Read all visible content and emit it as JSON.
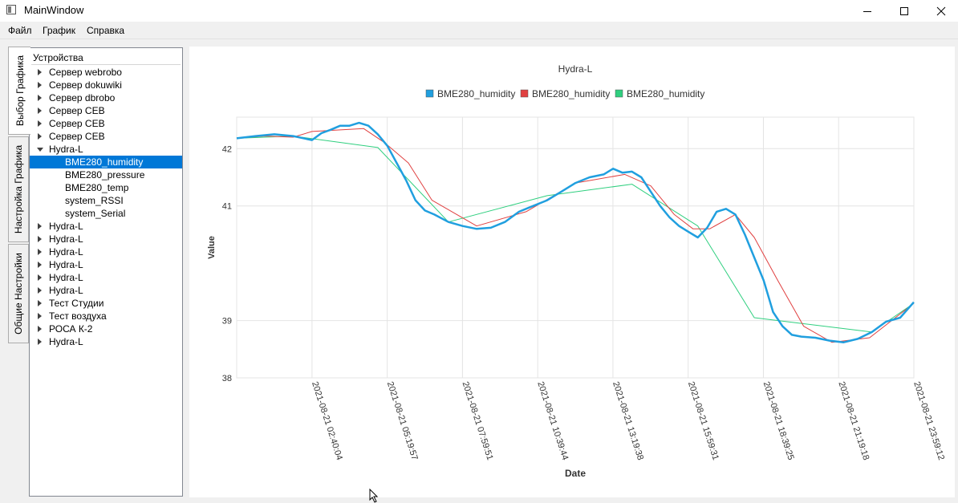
{
  "window": {
    "title": "MainWindow"
  },
  "menu": [
    "Файл",
    "График",
    "Справка"
  ],
  "tabs": [
    "Выбор Графика",
    "Настройка Графика",
    "Общие Настройки"
  ],
  "tree": {
    "header": "Устройства",
    "items": [
      {
        "label": "Сервер webrobo",
        "level": 0,
        "state": "collapsed"
      },
      {
        "label": "Сервер dokuwiki",
        "level": 0,
        "state": "collapsed"
      },
      {
        "label": "Сервер dbrobo",
        "level": 0,
        "state": "collapsed"
      },
      {
        "label": "Сервер CEB",
        "level": 0,
        "state": "collapsed"
      },
      {
        "label": "Сервер CEB",
        "level": 0,
        "state": "collapsed"
      },
      {
        "label": "Сервер CEB",
        "level": 0,
        "state": "collapsed"
      },
      {
        "label": "Hydra-L",
        "level": 0,
        "state": "expanded"
      },
      {
        "label": "BME280_humidity",
        "level": 1,
        "state": "leaf",
        "selected": true
      },
      {
        "label": "BME280_pressure",
        "level": 1,
        "state": "leaf"
      },
      {
        "label": "BME280_temp",
        "level": 1,
        "state": "leaf"
      },
      {
        "label": "system_RSSI",
        "level": 1,
        "state": "leaf"
      },
      {
        "label": "system_Serial",
        "level": 1,
        "state": "leaf"
      },
      {
        "label": "Hydra-L",
        "level": 0,
        "state": "collapsed"
      },
      {
        "label": "Hydra-L",
        "level": 0,
        "state": "collapsed"
      },
      {
        "label": "Hydra-L",
        "level": 0,
        "state": "collapsed"
      },
      {
        "label": "Hydra-L",
        "level": 0,
        "state": "collapsed"
      },
      {
        "label": "Hydra-L",
        "level": 0,
        "state": "collapsed"
      },
      {
        "label": "Hydra-L",
        "level": 0,
        "state": "collapsed"
      },
      {
        "label": "Тест Студии",
        "level": 0,
        "state": "collapsed"
      },
      {
        "label": "Тест воздуха",
        "level": 0,
        "state": "collapsed"
      },
      {
        "label": "РОСА К-2",
        "level": 0,
        "state": "collapsed"
      },
      {
        "label": "Hydra-L",
        "level": 0,
        "state": "collapsed"
      }
    ]
  },
  "chart_data": {
    "type": "line",
    "title": "Hydra-L",
    "xlabel": "Date",
    "ylabel": "Value",
    "ylim": [
      38,
      42.55
    ],
    "xlim": [
      "2021-08-21 00:00:00",
      "2021-08-21 23:59:12"
    ],
    "yticks": [
      "38",
      "39",
      "41",
      "42"
    ],
    "xticks": [
      "2021-08-21 02:40:04",
      "2021-08-21 05:19:57",
      "2021-08-21 07:59:51",
      "2021-08-21 10:39:44",
      "2021-08-21 13:19:38",
      "2021-08-21 15:59:31",
      "2021-08-21 18:39:25",
      "2021-08-21 21:19:18",
      "2021-08-21 23:59:12"
    ],
    "grid": true,
    "legend": "top-center",
    "series": [
      {
        "name": "BME280_humidity",
        "color": "#209fdf",
        "x": [
          "2021-08-21 00:00",
          "2021-08-21 00:40",
          "2021-08-21 01:20",
          "2021-08-21 02:00",
          "2021-08-21 02:40",
          "2021-08-21 03:00",
          "2021-08-21 03:20",
          "2021-08-21 03:40",
          "2021-08-21 04:00",
          "2021-08-21 04:20",
          "2021-08-21 04:40",
          "2021-08-21 05:00",
          "2021-08-21 05:20",
          "2021-08-21 05:40",
          "2021-08-21 06:00",
          "2021-08-21 06:20",
          "2021-08-21 06:40",
          "2021-08-21 07:00",
          "2021-08-21 07:30",
          "2021-08-21 08:00",
          "2021-08-21 08:30",
          "2021-08-21 09:00",
          "2021-08-21 09:30",
          "2021-08-21 10:00",
          "2021-08-21 10:30",
          "2021-08-21 11:00",
          "2021-08-21 11:30",
          "2021-08-21 12:00",
          "2021-08-21 12:30",
          "2021-08-21 13:00",
          "2021-08-21 13:20",
          "2021-08-21 13:40",
          "2021-08-21 14:00",
          "2021-08-21 14:20",
          "2021-08-21 14:40",
          "2021-08-21 15:00",
          "2021-08-21 15:20",
          "2021-08-21 15:40",
          "2021-08-21 16:00",
          "2021-08-21 16:20",
          "2021-08-21 16:40",
          "2021-08-21 17:00",
          "2021-08-21 17:20",
          "2021-08-21 17:40",
          "2021-08-21 18:00",
          "2021-08-21 18:20",
          "2021-08-21 18:40",
          "2021-08-21 19:00",
          "2021-08-21 19:20",
          "2021-08-21 19:40",
          "2021-08-21 20:00",
          "2021-08-21 20:30",
          "2021-08-21 21:00",
          "2021-08-21 21:30",
          "2021-08-21 22:00",
          "2021-08-21 22:30",
          "2021-08-21 23:00",
          "2021-08-21 23:30",
          "2021-08-21 23:59"
        ],
        "values": [
          42.18,
          42.22,
          42.25,
          42.22,
          42.15,
          42.27,
          42.33,
          42.4,
          42.4,
          42.45,
          42.4,
          42.25,
          42.05,
          41.75,
          41.45,
          41.1,
          40.92,
          40.85,
          40.72,
          40.65,
          40.6,
          40.62,
          40.72,
          40.9,
          41.0,
          41.1,
          41.25,
          41.4,
          41.5,
          41.55,
          41.65,
          41.58,
          41.6,
          41.5,
          41.25,
          41.0,
          40.8,
          40.65,
          40.55,
          40.45,
          40.62,
          40.9,
          40.95,
          40.85,
          40.5,
          40.1,
          39.7,
          39.15,
          38.9,
          38.75,
          38.72,
          38.7,
          38.65,
          38.62,
          38.68,
          38.8,
          38.98,
          39.05,
          39.32
        ]
      },
      {
        "name": "BME280_humidity",
        "color": "#e04040",
        "x": [
          "2021-08-21 00:00",
          "2021-08-21 01:00",
          "2021-08-21 02:00",
          "2021-08-21 02:40",
          "2021-08-21 04:30",
          "2021-08-21 05:15",
          "2021-08-21 06:05",
          "2021-08-21 06:55",
          "2021-08-21 08:30",
          "2021-08-21 10:15",
          "2021-08-21 12:00",
          "2021-08-21 13:45",
          "2021-08-21 14:40",
          "2021-08-21 15:30",
          "2021-08-21 16:10",
          "2021-08-21 16:45",
          "2021-08-21 17:40",
          "2021-08-21 18:20",
          "2021-08-21 19:10",
          "2021-08-21 20:05",
          "2021-08-21 21:05",
          "2021-08-21 22:25",
          "2021-08-21 23:59"
        ],
        "values": [
          42.18,
          42.22,
          42.2,
          42.3,
          42.35,
          42.1,
          41.75,
          41.1,
          40.65,
          40.9,
          41.4,
          41.55,
          41.35,
          40.85,
          40.6,
          40.6,
          40.85,
          40.45,
          39.7,
          38.9,
          38.62,
          38.7,
          39.3
        ]
      },
      {
        "name": "BME280_humidity",
        "color": "#2fcf7f",
        "x": [
          "2021-08-21 00:00",
          "2021-08-21 02:00",
          "2021-08-21 05:00",
          "2021-08-21 07:30",
          "2021-08-21 11:00",
          "2021-08-21 14:00",
          "2021-08-21 16:20",
          "2021-08-21 18:20",
          "2021-08-21 22:30",
          "2021-08-21 23:59"
        ],
        "values": [
          42.18,
          42.22,
          42.02,
          40.72,
          41.18,
          41.38,
          40.65,
          39.05,
          38.8,
          39.3
        ]
      }
    ]
  }
}
